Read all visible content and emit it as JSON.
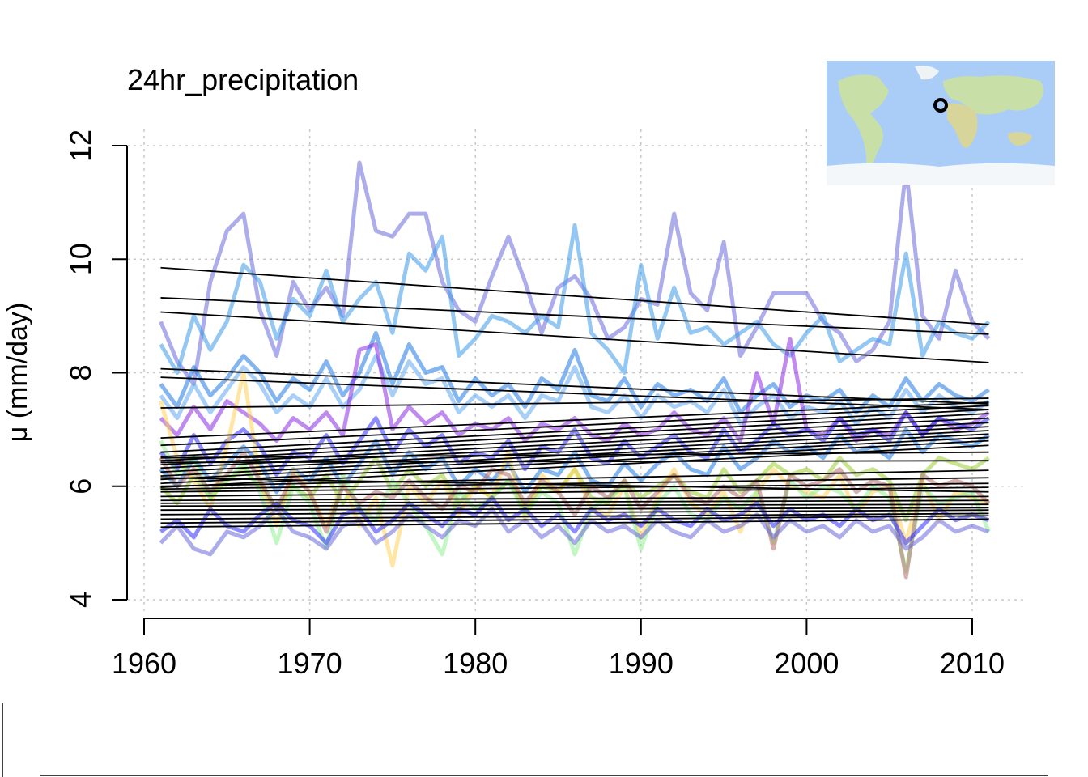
{
  "chart_data": {
    "type": "line",
    "title": "24hr_precipitation",
    "xlabel": "",
    "ylabel": "μ  (mm/day)",
    "xlim": [
      1959,
      2013
    ],
    "ylim": [
      4,
      12
    ],
    "xticks": [
      1960,
      1970,
      1980,
      1990,
      2000,
      2010
    ],
    "yticks": [
      4,
      6,
      8,
      10,
      12
    ],
    "xtick_labels": [
      "1960",
      "1970",
      "1980",
      "1990",
      "2000",
      "2010"
    ],
    "ytick_labels": [
      "4",
      "6",
      "8",
      "10",
      "12"
    ],
    "grid": true,
    "legend": "none",
    "years": [
      1961,
      2011
    ],
    "inset": "world-map-location-marker",
    "palette": [
      "#6a6adc",
      "#3d9be8",
      "#1e78e6",
      "#2d2dff",
      "#9acd32",
      "#ffd25a",
      "#90ee90",
      "#b46e6e",
      "#8a2be2",
      "#5fa8f0"
    ],
    "series": [
      {
        "color": "#6a6adc",
        "values": [
          8.9,
          8.2,
          7.8,
          9.6,
          10.5,
          10.8,
          9.1,
          8.3,
          9.6,
          9.1,
          9.5,
          9.0,
          11.7,
          10.5,
          10.4,
          10.8,
          10.8,
          9.6,
          9.1,
          8.9,
          9.7,
          10.4,
          9.6,
          8.7,
          9.5,
          9.7,
          9.3,
          8.6,
          8.8,
          9.3,
          9.2,
          10.8,
          9.4,
          9.1,
          10.3,
          8.3,
          8.8,
          9.4,
          9.4,
          9.4,
          8.9,
          8.7,
          8.2,
          8.4,
          8.9,
          11.6,
          9.0,
          8.6,
          9.8,
          8.9,
          8.6
        ]
      },
      {
        "color": "#3d9be8",
        "values": [
          8.5,
          8.0,
          9.0,
          8.4,
          8.9,
          9.9,
          9.6,
          8.6,
          9.3,
          9.0,
          9.8,
          8.9,
          9.3,
          9.6,
          8.7,
          10.1,
          9.8,
          10.4,
          8.3,
          8.6,
          9.0,
          8.9,
          8.7,
          9.0,
          8.8,
          10.6,
          8.7,
          8.4,
          8.0,
          9.9,
          8.6,
          9.5,
          8.7,
          8.8,
          8.5,
          8.7,
          8.9,
          8.5,
          8.3,
          8.7,
          9.0,
          8.2,
          8.4,
          8.6,
          8.5,
          10.1,
          8.3,
          8.9,
          8.7,
          8.6,
          8.9
        ]
      },
      {
        "color": "#1e78e6",
        "values": [
          7.8,
          7.4,
          8.1,
          7.6,
          7.9,
          8.3,
          8.0,
          7.5,
          7.9,
          7.7,
          8.2,
          7.6,
          8.0,
          8.7,
          7.8,
          8.5,
          8.0,
          8.1,
          7.5,
          7.9,
          7.6,
          7.8,
          7.4,
          7.9,
          7.7,
          8.4,
          7.6,
          7.5,
          7.9,
          7.4,
          7.8,
          7.6,
          7.7,
          7.5,
          7.9,
          7.3,
          7.6,
          7.8,
          7.4,
          7.6,
          7.5,
          7.7,
          7.3,
          7.6,
          7.4,
          7.9,
          7.5,
          7.8,
          7.6,
          7.5,
          7.7
        ]
      },
      {
        "color": "#5fa8f0",
        "values": [
          7.6,
          7.2,
          7.8,
          7.3,
          7.7,
          8.1,
          7.8,
          7.3,
          7.6,
          7.4,
          7.9,
          7.4,
          7.7,
          8.3,
          7.6,
          8.2,
          7.8,
          7.9,
          7.3,
          7.6,
          7.4,
          7.6,
          7.2,
          7.6,
          7.5,
          8.1,
          7.4,
          7.3,
          7.6,
          7.2,
          7.6,
          7.4,
          7.5,
          7.3,
          7.7,
          7.1,
          7.4,
          7.6,
          7.2,
          7.4,
          7.3,
          7.5,
          7.1,
          7.4,
          7.2,
          7.7,
          7.3,
          7.6,
          7.4,
          7.3,
          7.5
        ]
      },
      {
        "color": "#8a2be2",
        "values": [
          7.2,
          6.9,
          7.4,
          7.0,
          7.5,
          7.3,
          7.1,
          6.8,
          7.2,
          7.0,
          7.3,
          6.9,
          8.4,
          8.5,
          7.0,
          7.4,
          7.1,
          7.3,
          6.9,
          7.1,
          7.0,
          7.2,
          6.8,
          7.1,
          7.0,
          7.2,
          6.9,
          6.8,
          7.1,
          6.9,
          7.0,
          7.3,
          7.0,
          6.9,
          7.2,
          6.8,
          8.0,
          7.1,
          8.6,
          7.0,
          6.9,
          7.2,
          6.8,
          7.0,
          6.9,
          7.3,
          6.9,
          7.2,
          7.0,
          7.1,
          7.3
        ]
      },
      {
        "color": "#2d2dff",
        "values": [
          6.6,
          6.3,
          6.9,
          6.4,
          6.8,
          7.0,
          6.7,
          6.2,
          6.6,
          6.5,
          6.9,
          6.4,
          6.8,
          7.2,
          6.6,
          7.0,
          6.7,
          6.9,
          6.4,
          6.6,
          6.5,
          6.8,
          6.3,
          6.7,
          6.6,
          7.0,
          6.5,
          6.4,
          6.8,
          6.5,
          6.7,
          6.9,
          6.6,
          6.5,
          7.0,
          6.6,
          6.8,
          7.1,
          6.9,
          7.0,
          6.8,
          7.2,
          6.9,
          7.0,
          6.8,
          7.3,
          6.9,
          7.2,
          7.1,
          7.0,
          7.2
        ]
      },
      {
        "color": "#1e78e6",
        "values": [
          6.3,
          6.0,
          6.5,
          6.1,
          6.4,
          6.7,
          6.4,
          5.9,
          6.3,
          6.1,
          6.5,
          6.0,
          6.4,
          6.8,
          6.2,
          6.6,
          6.3,
          6.5,
          6.0,
          6.3,
          6.1,
          6.4,
          5.9,
          6.3,
          6.2,
          6.6,
          6.1,
          6.0,
          6.4,
          6.1,
          6.4,
          6.6,
          6.3,
          6.2,
          6.7,
          6.3,
          6.5,
          6.8,
          6.6,
          6.7,
          6.5,
          6.9,
          6.6,
          6.7,
          6.5,
          7.0,
          6.6,
          6.9,
          6.8,
          6.7,
          6.9
        ]
      },
      {
        "color": "#9acd32",
        "values": [
          6.0,
          5.7,
          6.2,
          5.8,
          6.1,
          6.3,
          6.0,
          5.6,
          6.0,
          5.8,
          6.2,
          5.7,
          6.1,
          6.5,
          5.9,
          6.3,
          6.0,
          6.2,
          5.7,
          6.0,
          5.8,
          6.1,
          5.6,
          6.0,
          5.9,
          6.3,
          5.8,
          5.7,
          6.1,
          5.8,
          6.0,
          6.2,
          5.9,
          5.8,
          6.3,
          5.9,
          6.1,
          6.4,
          6.2,
          6.3,
          6.1,
          6.5,
          6.2,
          6.3,
          6.1,
          5.4,
          6.2,
          6.5,
          6.4,
          6.3,
          6.5
        ]
      },
      {
        "color": "#ffd25a",
        "values": [
          7.5,
          6.5,
          6.1,
          5.6,
          6.7,
          8.0,
          6.1,
          5.3,
          6.3,
          5.9,
          5.3,
          6.1,
          5.3,
          5.8,
          4.6,
          6.0,
          5.7,
          6.1,
          5.5,
          6.0,
          5.8,
          6.6,
          5.4,
          6.2,
          5.9,
          6.3,
          5.6,
          5.5,
          6.0,
          5.1,
          5.8,
          6.3,
          5.7,
          5.5,
          5.9,
          5.2,
          5.9,
          6.3,
          6.0,
          5.9,
          5.8,
          6.2,
          5.5,
          5.9,
          6.0,
          5.0,
          6.1,
          5.4,
          5.9,
          5.8,
          5.7
        ]
      },
      {
        "color": "#90ee90",
        "values": [
          6.8,
          6.2,
          6.5,
          5.8,
          6.1,
          6.4,
          5.9,
          5.0,
          6.0,
          5.7,
          4.9,
          6.2,
          5.6,
          5.4,
          6.1,
          5.7,
          5.3,
          4.8,
          5.9,
          5.6,
          5.8,
          6.1,
          5.5,
          5.9,
          5.7,
          4.8,
          5.6,
          5.8,
          6.0,
          4.9,
          5.7,
          6.0,
          5.5,
          5.4,
          5.8,
          5.6,
          5.9,
          5.0,
          6.1,
          5.8,
          6.0,
          5.9,
          5.6,
          6.0,
          5.8,
          4.5,
          6.0,
          5.7,
          5.8,
          5.9,
          5.2
        ]
      },
      {
        "color": "#b46e6e",
        "values": [
          6.5,
          6.0,
          6.3,
          5.9,
          6.2,
          6.6,
          6.1,
          5.6,
          6.2,
          5.9,
          5.2,
          6.0,
          5.7,
          5.9,
          5.8,
          6.1,
          5.8,
          5.6,
          6.0,
          5.9,
          6.3,
          6.2,
          5.7,
          6.1,
          5.9,
          5.5,
          6.0,
          5.8,
          6.1,
          5.6,
          5.9,
          6.2,
          5.8,
          5.7,
          6.0,
          5.8,
          6.1,
          4.9,
          6.2,
          6.0,
          6.1,
          6.3,
          5.9,
          6.1,
          6.0,
          4.4,
          6.2,
          6.0,
          6.1,
          6.0,
          5.7
        ]
      },
      {
        "color": "#2d2dff",
        "values": [
          5.2,
          5.4,
          5.1,
          5.6,
          5.3,
          5.2,
          5.5,
          5.7,
          5.4,
          5.3,
          5.0,
          5.5,
          5.6,
          5.2,
          5.4,
          5.7,
          5.5,
          5.3,
          5.6,
          5.5,
          5.8,
          5.4,
          5.6,
          5.3,
          5.5,
          5.2,
          5.6,
          5.4,
          5.5,
          5.3,
          5.6,
          5.4,
          5.3,
          5.6,
          5.4,
          5.5,
          5.7,
          5.3,
          5.6,
          5.4,
          5.5,
          5.3,
          5.6,
          5.4,
          5.5,
          5.0,
          5.3,
          5.6,
          5.4,
          5.5,
          5.4
        ]
      },
      {
        "color": "#6a6adc",
        "values": [
          5.0,
          5.3,
          4.9,
          4.8,
          5.2,
          5.1,
          5.3,
          5.6,
          5.2,
          5.1,
          4.9,
          5.3,
          5.4,
          5.0,
          5.2,
          5.5,
          5.3,
          5.1,
          5.4,
          5.3,
          5.6,
          5.2,
          5.4,
          5.1,
          5.3,
          5.0,
          5.4,
          5.2,
          5.3,
          5.1,
          5.4,
          5.2,
          5.1,
          5.4,
          5.2,
          5.3,
          5.5,
          5.1,
          5.4,
          5.2,
          5.3,
          5.1,
          5.4,
          5.2,
          5.3,
          4.9,
          5.1,
          5.4,
          5.2,
          5.3,
          5.2
        ]
      }
    ],
    "trend_lines": [
      {
        "y_start": 9.85,
        "y_end": 8.85
      },
      {
        "y_start": 9.32,
        "y_end": 8.68
      },
      {
        "y_start": 9.07,
        "y_end": 8.18
      },
      {
        "y_start": 8.07,
        "y_end": 7.45
      },
      {
        "y_start": 7.92,
        "y_end": 7.35
      },
      {
        "y_start": 7.38,
        "y_end": 7.55
      },
      {
        "y_start": 6.85,
        "y_end": 7.48
      },
      {
        "y_start": 6.72,
        "y_end": 7.42
      },
      {
        "y_start": 6.6,
        "y_end": 7.35
      },
      {
        "y_start": 6.52,
        "y_end": 7.28
      },
      {
        "y_start": 6.45,
        "y_end": 7.2
      },
      {
        "y_start": 6.38,
        "y_end": 7.12
      },
      {
        "y_start": 6.32,
        "y_end": 7.05
      },
      {
        "y_start": 6.25,
        "y_end": 6.98
      },
      {
        "y_start": 6.18,
        "y_end": 6.92
      },
      {
        "y_start": 6.12,
        "y_end": 6.86
      },
      {
        "y_start": 6.05,
        "y_end": 6.8
      },
      {
        "y_start": 5.98,
        "y_end": 6.72
      },
      {
        "y_start": 6.5,
        "y_end": 6.6
      },
      {
        "y_start": 6.42,
        "y_end": 6.45
      },
      {
        "y_start": 6.0,
        "y_end": 6.28
      },
      {
        "y_start": 5.95,
        "y_end": 6.15
      },
      {
        "y_start": 5.9,
        "y_end": 6.05
      },
      {
        "y_start": 5.82,
        "y_end": 5.98
      },
      {
        "y_start": 6.15,
        "y_end": 5.9
      },
      {
        "y_start": 5.75,
        "y_end": 5.82
      },
      {
        "y_start": 5.7,
        "y_end": 5.75
      },
      {
        "y_start": 5.65,
        "y_end": 5.68
      },
      {
        "y_start": 5.58,
        "y_end": 5.62
      },
      {
        "y_start": 5.5,
        "y_end": 5.58
      },
      {
        "y_start": 5.42,
        "y_end": 5.52
      },
      {
        "y_start": 5.35,
        "y_end": 5.48
      },
      {
        "y_start": 5.28,
        "y_end": 5.42
      }
    ]
  }
}
